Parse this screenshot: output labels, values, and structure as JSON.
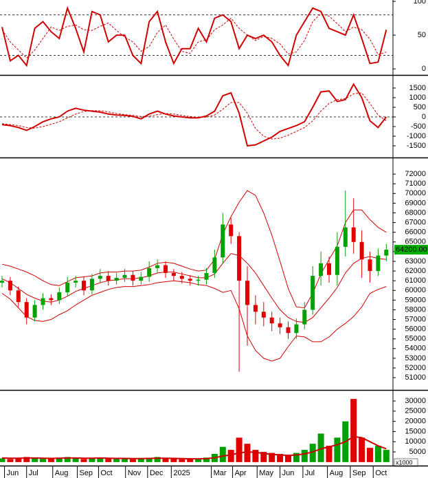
{
  "chart_data": [
    {
      "type": "line",
      "ylim": [
        -8,
        102
      ],
      "yticks": [
        0,
        50,
        100
      ],
      "ref_lines": [
        80,
        20
      ],
      "series": [
        {
          "color": "#d00000",
          "style": "bold",
          "values": [
            62,
            12,
            20,
            5,
            60,
            70,
            55,
            45,
            90,
            60,
            25,
            85,
            80,
            40,
            50,
            50,
            20,
            8,
            70,
            85,
            40,
            8,
            30,
            30,
            60,
            40,
            75,
            80,
            70,
            30,
            50,
            45,
            50,
            40,
            20,
            5,
            50,
            70,
            90,
            85,
            60,
            55,
            50,
            80,
            45,
            8,
            10,
            58
          ]
        },
        {
          "color": "#d00000",
          "style": "dashed",
          "values": [
            58,
            40,
            28,
            16,
            28,
            45,
            62,
            57,
            63,
            65,
            58,
            57,
            63,
            68,
            57,
            47,
            40,
            26,
            33,
            54,
            65,
            44,
            26,
            23,
            40,
            43,
            58,
            65,
            75,
            60,
            50,
            42,
            48,
            45,
            37,
            22,
            25,
            42,
            70,
            82,
            78,
            67,
            55,
            62,
            58,
            44,
            21,
            25
          ]
        }
      ]
    },
    {
      "type": "line",
      "ylim": [
        -2070,
        2070
      ],
      "yticks": [
        -1500,
        -1000,
        -500,
        0,
        500,
        1000,
        1500
      ],
      "ref_lines": [
        0
      ],
      "series": [
        {
          "color": "#d00000",
          "style": "bold",
          "values": [
            -400,
            -450,
            -550,
            -700,
            -500,
            -250,
            -100,
            0,
            300,
            450,
            350,
            300,
            250,
            150,
            100,
            80,
            30,
            -100,
            150,
            300,
            150,
            50,
            0,
            -50,
            -50,
            50,
            300,
            1100,
            1250,
            200,
            -1500,
            -1450,
            -1250,
            -1050,
            -750,
            -600,
            -450,
            -250,
            500,
            1300,
            1350,
            800,
            900,
            1700,
            1000,
            -200,
            -550,
            0
          ]
        },
        {
          "color": "#d00000",
          "style": "dashed",
          "values": [
            -350,
            -400,
            -450,
            -550,
            -580,
            -500,
            -380,
            -250,
            -50,
            150,
            280,
            330,
            320,
            260,
            180,
            120,
            80,
            20,
            30,
            120,
            180,
            150,
            80,
            20,
            -20,
            -10,
            100,
            400,
            750,
            750,
            200,
            -600,
            -1000,
            -1150,
            -1100,
            -950,
            -750,
            -550,
            -200,
            300,
            700,
            900,
            950,
            1200,
            1250,
            700,
            100,
            -200
          ]
        }
      ]
    },
    {
      "type": "candlestick",
      "ylim": [
        49800,
        73500
      ],
      "yticks": [
        51000,
        52000,
        53000,
        54000,
        55000,
        56000,
        57000,
        58000,
        59000,
        60000,
        61000,
        62000,
        63000,
        64000,
        65000,
        66000,
        67000,
        68000,
        69000,
        70000,
        71000,
        72000
      ],
      "up_color": "#00a000",
      "down_color": "#e00000",
      "last_price": {
        "value": 64200,
        "label": "64200.00"
      },
      "last_price_color": "#00b000",
      "open": [
        60800,
        61000,
        60000,
        58800,
        57200,
        58500,
        59200,
        59000,
        59800,
        60800,
        61000,
        60000,
        61200,
        61500,
        61000,
        61300,
        61600,
        61000,
        61400,
        62300,
        62600,
        61800,
        61500,
        61200,
        61000,
        61100,
        61800,
        63400,
        66800,
        65600,
        61000,
        58500,
        57800,
        57200,
        56600,
        56200,
        55600,
        56500,
        58000,
        61500,
        62800,
        61600,
        64500,
        66500,
        65000,
        63200,
        62000,
        63600
      ],
      "high": [
        61500,
        61400,
        60400,
        59200,
        59000,
        59700,
        59600,
        60300,
        61400,
        61500,
        61400,
        61700,
        62200,
        62000,
        61800,
        62200,
        62000,
        61900,
        63000,
        63200,
        63000,
        62200,
        61900,
        61600,
        61500,
        62300,
        64200,
        68000,
        67500,
        66000,
        62500,
        59500,
        58800,
        57800,
        57200,
        56800,
        57100,
        58800,
        62500,
        64000,
        63500,
        66000,
        70300,
        69500,
        66200,
        64000,
        64300,
        64800
      ],
      "low": [
        60300,
        59500,
        58300,
        56500,
        56800,
        58000,
        58500,
        58600,
        59400,
        60300,
        59500,
        59600,
        60800,
        60500,
        60600,
        60900,
        60500,
        60600,
        60900,
        61800,
        61300,
        61000,
        60700,
        60500,
        60500,
        60600,
        61300,
        62800,
        64800,
        51600,
        54300,
        56500,
        56300,
        55800,
        55500,
        55000,
        55000,
        56000,
        57500,
        60500,
        60800,
        60500,
        63500,
        63800,
        61300,
        60800,
        61500,
        63000
      ],
      "close": [
        61000,
        60000,
        58800,
        57200,
        58500,
        59200,
        59000,
        59800,
        60800,
        61000,
        60000,
        61200,
        61500,
        61000,
        61300,
        61600,
        61000,
        61400,
        62300,
        62600,
        61800,
        61500,
        61200,
        61000,
        61100,
        61800,
        63400,
        66800,
        65600,
        61000,
        58500,
        57800,
        57200,
        56600,
        56200,
        55600,
        56500,
        58000,
        61500,
        62800,
        61600,
        64500,
        66500,
        65000,
        63200,
        62000,
        63600,
        64200
      ],
      "series": [
        {
          "color": "#d00000",
          "style": "thin",
          "values": [
            62700,
            62500,
            62200,
            61900,
            61500,
            61000,
            60600,
            60500,
            60900,
            61300,
            61400,
            61500,
            61800,
            61900,
            61900,
            62000,
            62000,
            62100,
            62400,
            62800,
            62900,
            62800,
            62500,
            62200,
            62000,
            62100,
            63200,
            65800,
            67600,
            69100,
            70300,
            69800,
            68000,
            65700,
            63000,
            60200,
            58300,
            58200,
            59700,
            61700,
            63200,
            64600,
            67000,
            68300,
            68300,
            67300,
            66500,
            66000
          ]
        },
        {
          "color": "#d00000",
          "style": "thin",
          "values": [
            61200,
            60800,
            60200,
            59600,
            59200,
            58900,
            58800,
            59000,
            59400,
            59900,
            60200,
            60500,
            60800,
            61000,
            61100,
            61200,
            61200,
            61300,
            61500,
            61800,
            61900,
            61900,
            61700,
            61500,
            61300,
            61300,
            61700,
            62800,
            63800,
            63600,
            62800,
            61800,
            60500,
            59200,
            58000,
            57200,
            56800,
            56700,
            57200,
            58200,
            59200,
            60300,
            61800,
            62800,
            63300,
            63500,
            63300,
            63200
          ]
        },
        {
          "color": "#d00000",
          "style": "thin",
          "values": [
            59700,
            59100,
            58200,
            57300,
            56900,
            56800,
            57000,
            57500,
            57900,
            58500,
            59000,
            59500,
            59800,
            60100,
            60300,
            60400,
            60400,
            60500,
            60600,
            60800,
            60900,
            61000,
            60900,
            60800,
            60600,
            60500,
            60200,
            59800,
            60000,
            58100,
            55300,
            53800,
            53000,
            52700,
            53000,
            54200,
            55300,
            55200,
            54700,
            54700,
            55200,
            56000,
            56600,
            57300,
            58300,
            59700,
            60100,
            60400
          ]
        }
      ]
    },
    {
      "type": "bar",
      "ylim": [
        -1400,
        34400
      ],
      "yticks": [
        5000,
        10000,
        15000,
        20000,
        25000,
        30000
      ],
      "unit_label": "x1000",
      "values": [
        1800,
        1500,
        2000,
        2500,
        1800,
        1600,
        1500,
        2200,
        2500,
        1800,
        1500,
        2000,
        2200,
        1600,
        1500,
        1700,
        1400,
        1600,
        2000,
        2500,
        1800,
        1500,
        1400,
        1300,
        1500,
        2200,
        4000,
        7500,
        6000,
        12000,
        9000,
        6000,
        5000,
        4500,
        4000,
        3500,
        4500,
        6000,
        9000,
        14000,
        8000,
        12000,
        20000,
        31000,
        12000,
        7000,
        8000,
        6000
      ],
      "series": [
        {
          "color": "#d00000",
          "style": "bold",
          "values": [
            2000,
            1900,
            1900,
            2000,
            2000,
            1900,
            1800,
            1900,
            2000,
            2000,
            1900,
            1900,
            2000,
            1900,
            1800,
            1800,
            1700,
            1700,
            1800,
            1900,
            1900,
            1800,
            1700,
            1600,
            1600,
            1700,
            2100,
            3000,
            3500,
            4500,
            5000,
            4800,
            4200,
            3800,
            3500,
            3300,
            3500,
            4000,
            5000,
            6500,
            7500,
            8500,
            10000,
            12500,
            12000,
            10000,
            8000,
            6500
          ]
        }
      ],
      "xticks": [
        {
          "value": 0.3,
          "label": "Jun"
        },
        {
          "value": 3.0,
          "label": "Jul"
        },
        {
          "value": 6.2,
          "label": "Aug"
        },
        {
          "value": 9.2,
          "label": "Sep"
        },
        {
          "value": 11.8,
          "label": "Oct"
        },
        {
          "value": 15.1,
          "label": "Nov"
        },
        {
          "value": 17.8,
          "label": "Dec"
        },
        {
          "value": 20.7,
          "label": "2025"
        },
        {
          "value": 25.6,
          "label": "Mar"
        },
        {
          "value": 28.2,
          "label": "Apr"
        },
        {
          "value": 31.2,
          "label": "May"
        },
        {
          "value": 34.0,
          "label": "Jun"
        },
        {
          "value": 36.8,
          "label": "Jul"
        },
        {
          "value": 39.8,
          "label": "Aug"
        },
        {
          "value": 42.6,
          "label": "Sep"
        },
        {
          "value": 45.4,
          "label": "Oct"
        }
      ]
    }
  ]
}
